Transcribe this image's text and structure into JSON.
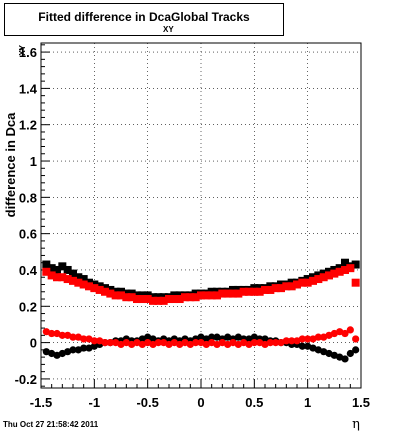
{
  "chart_data": {
    "type": "scatter",
    "title": "Fitted difference in Dca",
    "title_subscript": "XY",
    "title_suffix": "Global Tracks",
    "xlabel": "η",
    "ylabel": "difference in Dca",
    "ylabel_subscript": "XY",
    "xlim": [
      -1.5,
      1.5
    ],
    "ylim": [
      -0.25,
      1.65
    ],
    "xticks": [
      "-1.5",
      "-1",
      "-0.5",
      "0",
      "0.5",
      "1",
      "1.5"
    ],
    "xtick_values": [
      -1.5,
      -1,
      -0.5,
      0,
      0.5,
      1,
      1.5
    ],
    "yticks": [
      "-0.2",
      "0",
      "0.2",
      "0.4",
      "0.6",
      "0.8",
      "1",
      "1.2",
      "1.4",
      "1.6"
    ],
    "ytick_values": [
      -0.2,
      0,
      0.2,
      0.4,
      0.6,
      0.8,
      1,
      1.2,
      1.4,
      1.6
    ],
    "grid": true,
    "series": [
      {
        "marker": "square",
        "color": "#000000",
        "points": [
          [
            -1.45,
            0.43
          ],
          [
            -1.4,
            0.41
          ],
          [
            -1.35,
            0.4
          ],
          [
            -1.3,
            0.42
          ],
          [
            -1.25,
            0.4
          ],
          [
            -1.2,
            0.38
          ],
          [
            -1.15,
            0.36
          ],
          [
            -1.1,
            0.35
          ],
          [
            -1.05,
            0.33
          ],
          [
            -1.0,
            0.32
          ],
          [
            -0.95,
            0.31
          ],
          [
            -0.9,
            0.3
          ],
          [
            -0.85,
            0.29
          ],
          [
            -0.8,
            0.28
          ],
          [
            -0.75,
            0.28
          ],
          [
            -0.7,
            0.27
          ],
          [
            -0.65,
            0.27
          ],
          [
            -0.6,
            0.26
          ],
          [
            -0.55,
            0.26
          ],
          [
            -0.5,
            0.26
          ],
          [
            -0.45,
            0.25
          ],
          [
            -0.4,
            0.25
          ],
          [
            -0.35,
            0.25
          ],
          [
            -0.3,
            0.25
          ],
          [
            -0.25,
            0.26
          ],
          [
            -0.2,
            0.26
          ],
          [
            -0.15,
            0.26
          ],
          [
            -0.1,
            0.26
          ],
          [
            -0.05,
            0.27
          ],
          [
            0.0,
            0.27
          ],
          [
            0.05,
            0.27
          ],
          [
            0.1,
            0.28
          ],
          [
            0.15,
            0.28
          ],
          [
            0.2,
            0.28
          ],
          [
            0.25,
            0.28
          ],
          [
            0.3,
            0.29
          ],
          [
            0.35,
            0.29
          ],
          [
            0.4,
            0.29
          ],
          [
            0.45,
            0.29
          ],
          [
            0.5,
            0.3
          ],
          [
            0.55,
            0.3
          ],
          [
            0.6,
            0.3
          ],
          [
            0.65,
            0.31
          ],
          [
            0.7,
            0.31
          ],
          [
            0.75,
            0.32
          ],
          [
            0.8,
            0.32
          ],
          [
            0.85,
            0.33
          ],
          [
            0.9,
            0.33
          ],
          [
            0.95,
            0.34
          ],
          [
            1.0,
            0.35
          ],
          [
            1.05,
            0.36
          ],
          [
            1.1,
            0.37
          ],
          [
            1.15,
            0.38
          ],
          [
            1.2,
            0.39
          ],
          [
            1.25,
            0.4
          ],
          [
            1.3,
            0.41
          ],
          [
            1.35,
            0.44
          ],
          [
            1.4,
            0.42
          ],
          [
            1.45,
            0.43
          ]
        ]
      },
      {
        "marker": "square",
        "color": "#ff0000",
        "points": [
          [
            -1.45,
            0.39
          ],
          [
            -1.4,
            0.37
          ],
          [
            -1.35,
            0.36
          ],
          [
            -1.3,
            0.36
          ],
          [
            -1.25,
            0.35
          ],
          [
            -1.2,
            0.34
          ],
          [
            -1.15,
            0.33
          ],
          [
            -1.1,
            0.32
          ],
          [
            -1.05,
            0.31
          ],
          [
            -1.0,
            0.3
          ],
          [
            -0.95,
            0.29
          ],
          [
            -0.9,
            0.28
          ],
          [
            -0.85,
            0.27
          ],
          [
            -0.8,
            0.26
          ],
          [
            -0.75,
            0.26
          ],
          [
            -0.7,
            0.25
          ],
          [
            -0.65,
            0.25
          ],
          [
            -0.6,
            0.24
          ],
          [
            -0.55,
            0.24
          ],
          [
            -0.5,
            0.24
          ],
          [
            -0.45,
            0.23
          ],
          [
            -0.4,
            0.23
          ],
          [
            -0.35,
            0.23
          ],
          [
            -0.3,
            0.24
          ],
          [
            -0.25,
            0.24
          ],
          [
            -0.2,
            0.24
          ],
          [
            -0.15,
            0.25
          ],
          [
            -0.1,
            0.25
          ],
          [
            -0.05,
            0.25
          ],
          [
            0.0,
            0.26
          ],
          [
            0.05,
            0.26
          ],
          [
            0.1,
            0.26
          ],
          [
            0.15,
            0.26
          ],
          [
            0.2,
            0.27
          ],
          [
            0.25,
            0.27
          ],
          [
            0.3,
            0.27
          ],
          [
            0.35,
            0.27
          ],
          [
            0.4,
            0.28
          ],
          [
            0.45,
            0.28
          ],
          [
            0.5,
            0.28
          ],
          [
            0.55,
            0.28
          ],
          [
            0.6,
            0.29
          ],
          [
            0.65,
            0.29
          ],
          [
            0.7,
            0.3
          ],
          [
            0.75,
            0.3
          ],
          [
            0.8,
            0.31
          ],
          [
            0.85,
            0.31
          ],
          [
            0.9,
            0.32
          ],
          [
            0.95,
            0.33
          ],
          [
            1.0,
            0.33
          ],
          [
            1.05,
            0.34
          ],
          [
            1.1,
            0.35
          ],
          [
            1.15,
            0.36
          ],
          [
            1.2,
            0.37
          ],
          [
            1.25,
            0.38
          ],
          [
            1.3,
            0.39
          ],
          [
            1.35,
            0.4
          ],
          [
            1.4,
            0.41
          ],
          [
            1.45,
            0.33
          ]
        ]
      },
      {
        "marker": "circle",
        "color": "#000000",
        "points": [
          [
            -1.45,
            -0.05
          ],
          [
            -1.4,
            -0.06
          ],
          [
            -1.35,
            -0.07
          ],
          [
            -1.3,
            -0.06
          ],
          [
            -1.25,
            -0.05
          ],
          [
            -1.2,
            -0.04
          ],
          [
            -1.15,
            -0.04
          ],
          [
            -1.1,
            -0.03
          ],
          [
            -1.05,
            -0.03
          ],
          [
            -1.0,
            -0.02
          ],
          [
            -0.95,
            -0.01
          ],
          [
            -0.9,
            0.0
          ],
          [
            -0.85,
            0.0
          ],
          [
            -0.8,
            0.01
          ],
          [
            -0.75,
            0.01
          ],
          [
            -0.7,
            0.02
          ],
          [
            -0.65,
            0.01
          ],
          [
            -0.6,
            0.01
          ],
          [
            -0.55,
            0.02
          ],
          [
            -0.5,
            0.03
          ],
          [
            -0.45,
            0.02
          ],
          [
            -0.4,
            0.01
          ],
          [
            -0.35,
            0.02
          ],
          [
            -0.3,
            0.01
          ],
          [
            -0.25,
            0.02
          ],
          [
            -0.2,
            0.01
          ],
          [
            -0.15,
            0.02
          ],
          [
            -0.1,
            0.01
          ],
          [
            -0.05,
            0.02
          ],
          [
            0.0,
            0.03
          ],
          [
            0.05,
            0.02
          ],
          [
            0.1,
            0.03
          ],
          [
            0.15,
            0.03
          ],
          [
            0.2,
            0.02
          ],
          [
            0.25,
            0.03
          ],
          [
            0.3,
            0.02
          ],
          [
            0.35,
            0.03
          ],
          [
            0.4,
            0.02
          ],
          [
            0.45,
            0.02
          ],
          [
            0.5,
            0.03
          ],
          [
            0.55,
            0.02
          ],
          [
            0.6,
            0.02
          ],
          [
            0.65,
            0.01
          ],
          [
            0.7,
            0.01
          ],
          [
            0.75,
            0.0
          ],
          [
            0.8,
            0.0
          ],
          [
            0.85,
            -0.01
          ],
          [
            0.9,
            -0.01
          ],
          [
            0.95,
            -0.02
          ],
          [
            1.0,
            -0.02
          ],
          [
            1.05,
            -0.03
          ],
          [
            1.1,
            -0.04
          ],
          [
            1.15,
            -0.05
          ],
          [
            1.2,
            -0.06
          ],
          [
            1.25,
            -0.07
          ],
          [
            1.3,
            -0.08
          ],
          [
            1.35,
            -0.09
          ],
          [
            1.4,
            -0.06
          ],
          [
            1.45,
            -0.04
          ]
        ]
      },
      {
        "marker": "circle",
        "color": "#ff0000",
        "points": [
          [
            -1.45,
            0.06
          ],
          [
            -1.4,
            0.05
          ],
          [
            -1.35,
            0.05
          ],
          [
            -1.3,
            0.04
          ],
          [
            -1.25,
            0.04
          ],
          [
            -1.2,
            0.03
          ],
          [
            -1.15,
            0.03
          ],
          [
            -1.1,
            0.02
          ],
          [
            -1.05,
            0.02
          ],
          [
            -1.0,
            0.01
          ],
          [
            -0.95,
            0.01
          ],
          [
            -0.9,
            0.0
          ],
          [
            -0.85,
            0.0
          ],
          [
            -0.8,
            0.0
          ],
          [
            -0.75,
            -0.01
          ],
          [
            -0.7,
            0.0
          ],
          [
            -0.65,
            -0.01
          ],
          [
            -0.6,
            0.0
          ],
          [
            -0.55,
            -0.01
          ],
          [
            -0.5,
            0.0
          ],
          [
            -0.45,
            -0.01
          ],
          [
            -0.4,
            0.0
          ],
          [
            -0.35,
            0.0
          ],
          [
            -0.3,
            -0.01
          ],
          [
            -0.25,
            0.0
          ],
          [
            -0.2,
            -0.01
          ],
          [
            -0.15,
            0.0
          ],
          [
            -0.1,
            -0.01
          ],
          [
            -0.05,
            0.0
          ],
          [
            0.0,
            0.0
          ],
          [
            0.05,
            -0.01
          ],
          [
            0.1,
            0.0
          ],
          [
            0.15,
            -0.01
          ],
          [
            0.2,
            0.0
          ],
          [
            0.25,
            -0.01
          ],
          [
            0.3,
            0.0
          ],
          [
            0.35,
            -0.01
          ],
          [
            0.4,
            0.0
          ],
          [
            0.45,
            -0.01
          ],
          [
            0.5,
            0.0
          ],
          [
            0.55,
            0.0
          ],
          [
            0.6,
            -0.01
          ],
          [
            0.65,
            0.0
          ],
          [
            0.7,
            0.0
          ],
          [
            0.75,
            0.0
          ],
          [
            0.8,
            0.01
          ],
          [
            0.85,
            0.01
          ],
          [
            0.9,
            0.01
          ],
          [
            0.95,
            0.02
          ],
          [
            1.0,
            0.02
          ],
          [
            1.05,
            0.02
          ],
          [
            1.1,
            0.03
          ],
          [
            1.15,
            0.03
          ],
          [
            1.2,
            0.04
          ],
          [
            1.25,
            0.05
          ],
          [
            1.3,
            0.06
          ],
          [
            1.35,
            0.05
          ],
          [
            1.4,
            0.07
          ],
          [
            1.45,
            0.02
          ]
        ]
      }
    ]
  },
  "footer": {
    "timestamp": "Thu Oct 27 21:58:42 2011"
  }
}
